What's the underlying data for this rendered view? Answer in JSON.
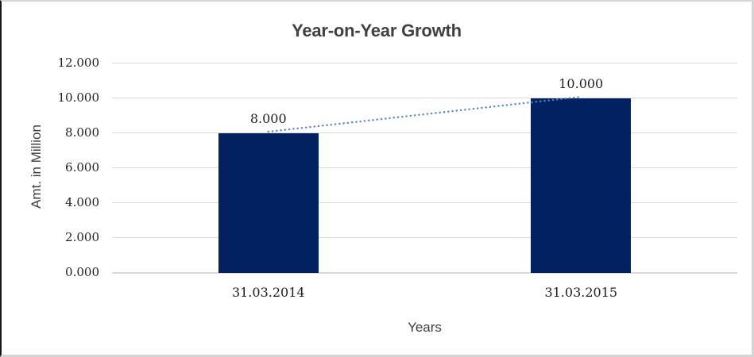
{
  "chart_data": {
    "type": "bar",
    "title": "Year-on-Year Growth",
    "xlabel": "Years",
    "ylabel": "Amt. in Million",
    "categories": [
      "31.03.2014",
      "31.03.2015"
    ],
    "values": [
      8.0,
      10.0
    ],
    "data_labels": [
      "8.000",
      "10.000"
    ],
    "ylim": [
      0,
      12
    ],
    "ytick_step": 2,
    "ytick_labels": [
      "0.000",
      "2.000",
      "4.000",
      "6.000",
      "8.000",
      "10.000",
      "12.000"
    ],
    "grid": true,
    "legend_position": "none",
    "trendline": {
      "style": "dotted",
      "from_value": 8.0,
      "to_value": 10.0,
      "color": "#4f86c6"
    },
    "colors": {
      "bar_fill": "#032161",
      "gridline": "#d9d9d9",
      "title_text": "#404040",
      "tick_text": "#1f1f1f",
      "axis_title_text": "#3f3f3f"
    }
  }
}
